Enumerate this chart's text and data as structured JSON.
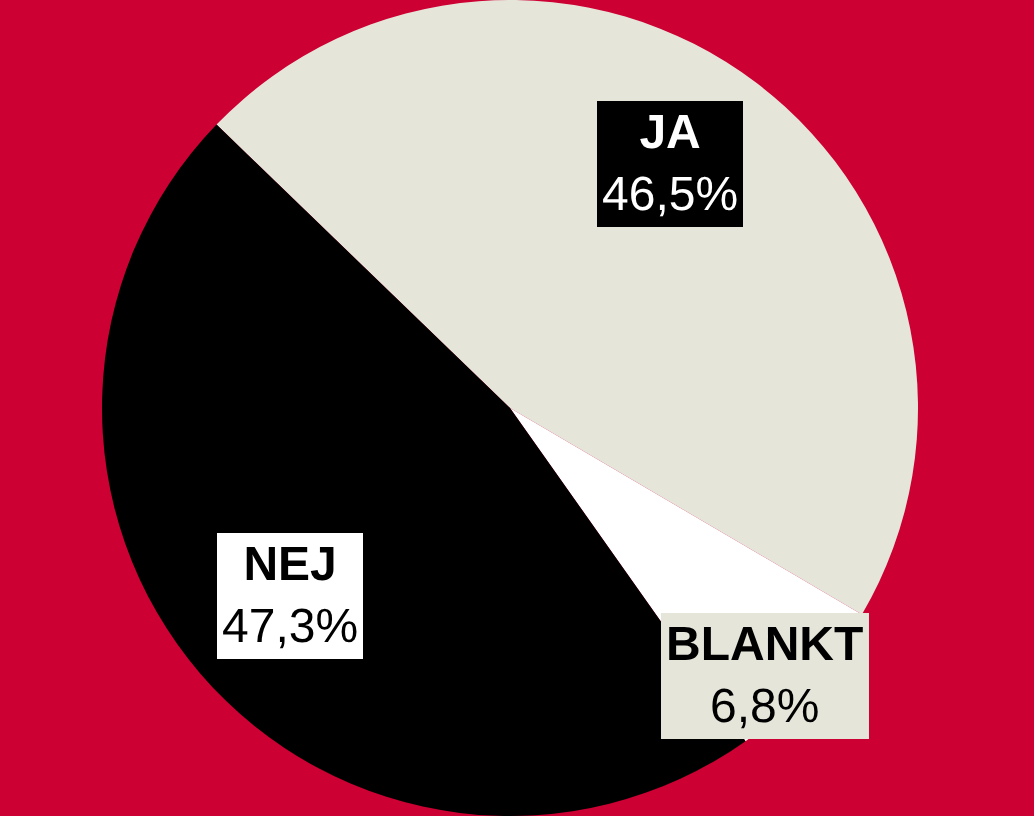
{
  "chart_data": {
    "type": "pie",
    "categories": [
      "JA",
      "BLANKT",
      "NEJ"
    ],
    "values": [
      46.5,
      6.8,
      47.3
    ],
    "colors": [
      "#e6e5da",
      "#ffffff",
      "#000000"
    ],
    "value_labels": [
      "46,5%",
      "6,8%",
      "47,3%"
    ],
    "legend": false
  }
}
